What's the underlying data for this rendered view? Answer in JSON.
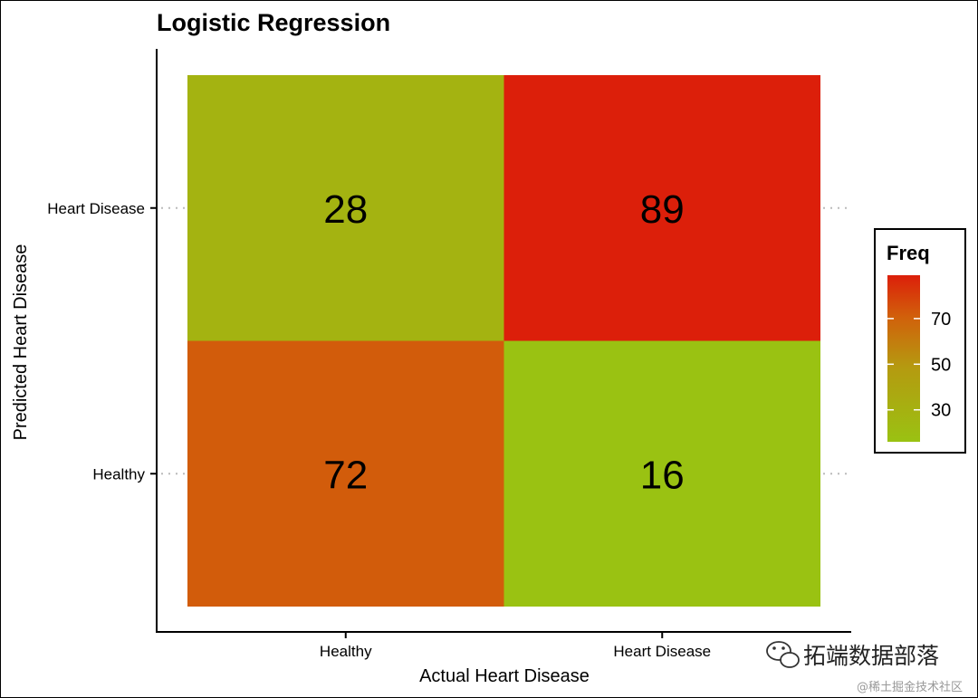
{
  "chart_data": {
    "type": "heatmap",
    "title": "Logistic Regression",
    "xlabel": "Actual Heart Disease",
    "ylabel": "Predicted Heart Disease",
    "x_categories": [
      "Healthy",
      "Heart Disease"
    ],
    "y_categories": [
      "Healthy",
      "Heart Disease"
    ],
    "cells": [
      {
        "x": "Healthy",
        "y": "Heart Disease",
        "value": 28
      },
      {
        "x": "Heart Disease",
        "y": "Heart Disease",
        "value": 89
      },
      {
        "x": "Healthy",
        "y": "Healthy",
        "value": 72
      },
      {
        "x": "Heart Disease",
        "y": "Healthy",
        "value": 16
      }
    ],
    "legend": {
      "title": "Freq",
      "position": "right",
      "ticks": [
        30,
        50,
        70
      ],
      "range": [
        16,
        89
      ],
      "low_color": "#9ac212",
      "mid_color": "#b59a10",
      "high_color": "#dc1f0a"
    },
    "grid": false
  },
  "watermark": {
    "main": "拓端数据部落",
    "sub": "@稀土掘金技术社区"
  }
}
